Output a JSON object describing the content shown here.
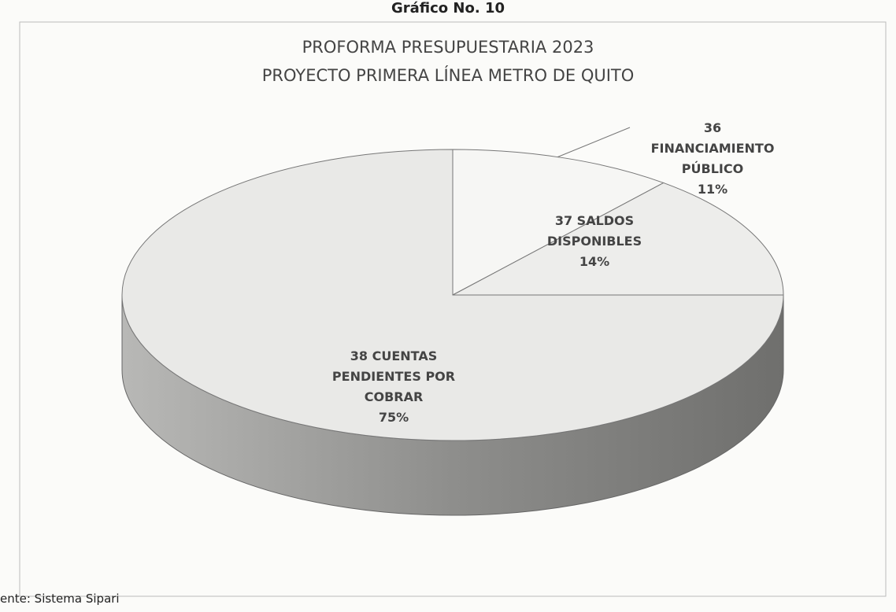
{
  "header": "Gráfico No. 10",
  "footer": "ente: Sistema Sipari",
  "chart_data": {
    "type": "pie3d",
    "title": "PROFORMA PRESUPUESTARIA 2023",
    "subtitle": "PROYECTO PRIMERA LÍNEA METRO DE QUITO",
    "categories": [
      "36 FINANCIAMIENTO PÚBLICO",
      "37 SALDOS DISPONIBLES",
      "38 CUENTAS PENDIENTES POR COBRAR"
    ],
    "values": [
      11,
      14,
      75
    ],
    "value_labels": [
      "11%",
      "14%",
      "75%"
    ],
    "colors": [
      "#f6f6f4",
      "#ededeb",
      "#e9e9e7"
    ]
  }
}
